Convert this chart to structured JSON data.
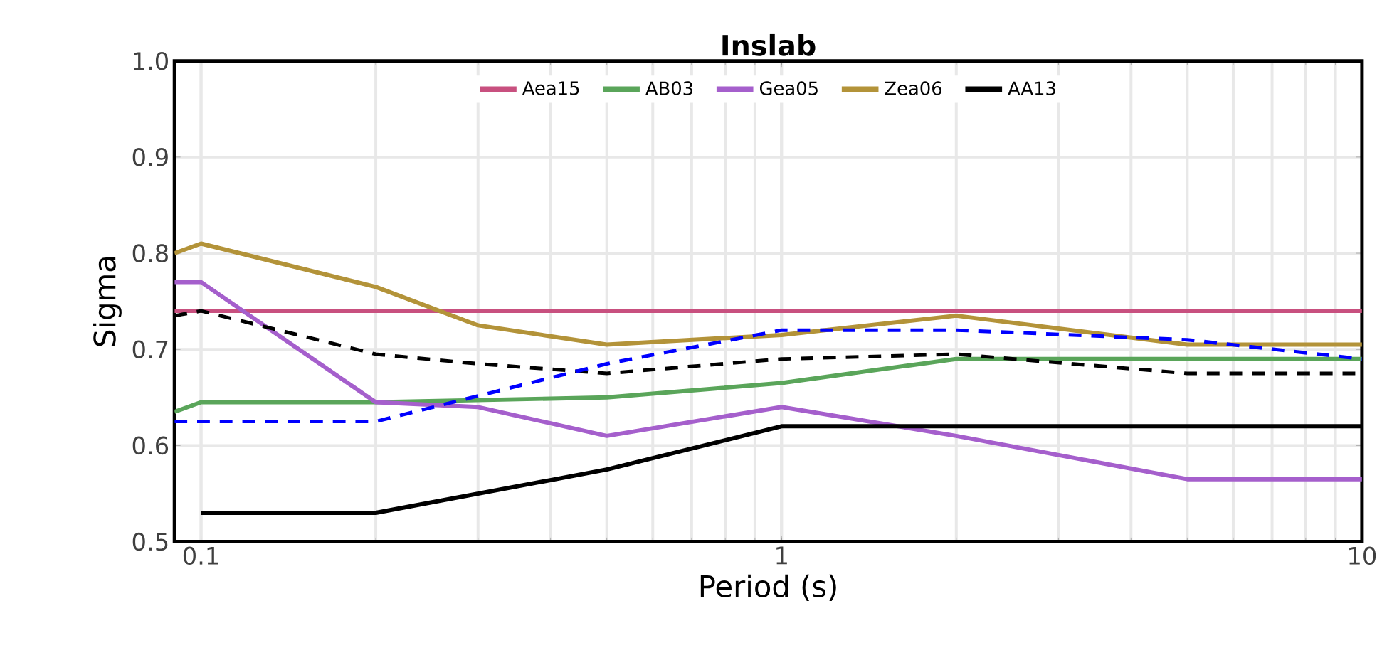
{
  "chart_data": {
    "type": "line",
    "title": "**Inslab**",
    "xlabel": "Period (s)",
    "ylabel": "Sigma",
    "log": "x",
    "xlim": [
      0.09,
      10
    ],
    "ylim": [
      0.5,
      1.0
    ],
    "xticks": [
      0.1,
      1,
      10
    ],
    "yticks": [
      0.5,
      0.6,
      0.7,
      0.8,
      0.9,
      {
        "value": 1,
        "label": "1.0"
      }
    ],
    "grid": true,
    "legend": "top",
    "series": [
      {
        "name": "Aea15",
        "color": "#c8507f",
        "x": [
          0.09,
          10
        ],
        "values": [
          0.74,
          0.74
        ]
      },
      {
        "name": "AB03",
        "color": "#5aa55a",
        "x": [
          0.09,
          0.1,
          0.2,
          0.5,
          1,
          2,
          5,
          10
        ],
        "values": [
          0.635,
          0.645,
          0.645,
          0.65,
          0.665,
          0.69,
          0.69,
          0.69
        ]
      },
      {
        "name": "Gea05",
        "color": "#a55fcc",
        "x": [
          0.09,
          0.1,
          0.2,
          0.3,
          0.5,
          1,
          2,
          5,
          10
        ],
        "values": [
          0.77,
          0.77,
          0.645,
          0.64,
          0.61,
          0.64,
          0.61,
          0.565,
          0.565
        ]
      },
      {
        "name": "Zea06",
        "color": "#b39339",
        "x": [
          0.09,
          0.1,
          0.2,
          0.3,
          0.5,
          1,
          2,
          5,
          10
        ],
        "values": [
          0.8,
          0.81,
          0.765,
          0.725,
          0.705,
          0.715,
          0.735,
          0.705,
          0.705
        ]
      },
      {
        "name": "AA13",
        "color": "#000000",
        "x": [
          0.1,
          0.2,
          0.5,
          1,
          2,
          5,
          10
        ],
        "values": [
          0.53,
          0.53,
          0.575,
          0.62,
          0.62,
          0.62,
          0.62
        ]
      },
      {
        "color": "#000000",
        "line_style": "dashed",
        "x": [
          0.09,
          0.1,
          0.2,
          0.3,
          0.5,
          1,
          2,
          5,
          10
        ],
        "values": [
          0.735,
          0.74,
          0.695,
          0.685,
          0.675,
          0.69,
          0.695,
          0.675,
          0.675
        ]
      },
      {
        "color": "#0000ff",
        "line_style": "dashed",
        "x": [
          0.09,
          0.2,
          0.5,
          1,
          2,
          5,
          10
        ],
        "values": [
          0.625,
          0.625,
          0.685,
          0.72,
          0.72,
          0.71,
          0.69
        ]
      }
    ]
  }
}
